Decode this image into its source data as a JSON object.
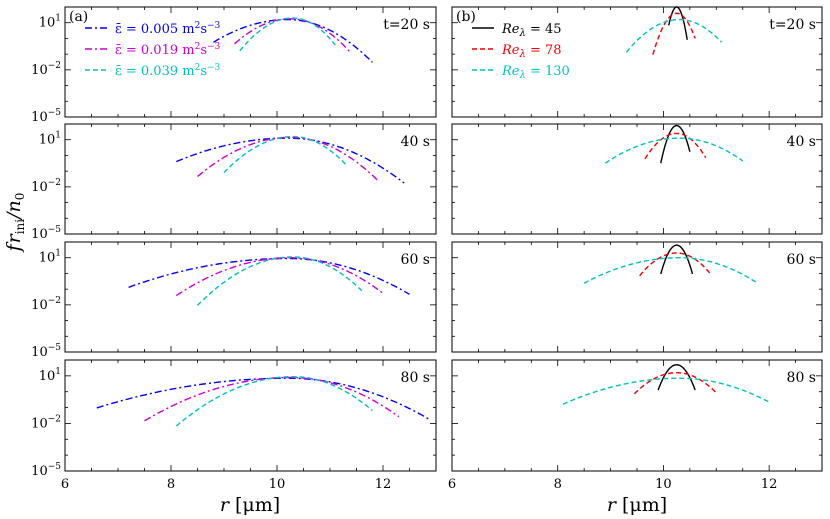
{
  "colors": {
    "blue": "#0000ee",
    "magenta": "#cc00cc",
    "cyan": "#00bfbf",
    "black": "#000000",
    "red": "#ee0000"
  },
  "chart_data": {
    "type": "line",
    "ylabel": "f r_ini / n_0",
    "xlabel": "r [μm]",
    "xlim": [
      6,
      13
    ],
    "xticks": [
      "6",
      "8",
      "10",
      "12"
    ],
    "yscale": "log",
    "ylim_exp": [
      -5,
      2
    ],
    "ytick_labels": [
      {
        "base": "10",
        "exp": "1"
      },
      {
        "base": "10",
        "exp": "-2"
      },
      {
        "base": "10",
        "exp": "-5"
      }
    ],
    "times": [
      "t=20 s",
      "40 s",
      "60 s",
      "80 s"
    ],
    "panel_labels": [
      "(a)",
      "(b)"
    ],
    "columns": [
      {
        "legend": [
          {
            "prefix": "ε̄ = 0.005 m",
            "unit": "2",
            "mid": "s",
            "unit2": "−3",
            "color": "#0000ee",
            "dash": "7,3,2,3"
          },
          {
            "prefix": "ε̄ = 0.019 m",
            "unit": "2",
            "mid": "s",
            "unit2": "−3",
            "color": "#cc00cc",
            "dash": "7,3,2,3"
          },
          {
            "prefix": "ε̄ = 0.039 m",
            "unit": "2",
            "mid": "s",
            "unit2": "−3",
            "color": "#00bfbf",
            "dash": "5,3"
          }
        ],
        "series_params": [
          {
            "name": "ε̄ = 0.005",
            "color": "#0000ee",
            "dash": "7,3,2,3",
            "rows": [
              {
                "peak": 10.2,
                "height": 1.2,
                "lw": 0.42,
                "rw": 0.35,
                "xmin": 8.8,
                "xmax": 11.8
              },
              {
                "peak": 10.2,
                "height": 1.1,
                "lw": 0.62,
                "rw": 0.47,
                "xmin": 8.1,
                "xmax": 12.4
              },
              {
                "peak": 10.2,
                "height": 0.95,
                "lw": 0.8,
                "rw": 0.55,
                "xmin": 7.2,
                "xmax": 12.5
              },
              {
                "peak": 10.2,
                "height": 0.85,
                "lw": 0.95,
                "rw": 0.6,
                "xmin": 6.6,
                "xmax": 12.9
              }
            ]
          },
          {
            "name": "ε̄ = 0.019",
            "color": "#cc00cc",
            "dash": "7,3,2,3",
            "rows": [
              {
                "peak": 10.25,
                "height": 1.25,
                "lw": 0.3,
                "rw": 0.28,
                "xmin": 9.2,
                "xmax": 11.4
              },
              {
                "peak": 10.25,
                "height": 1.15,
                "lw": 0.4,
                "rw": 0.36,
                "xmin": 8.5,
                "xmax": 11.9
              },
              {
                "peak": 10.25,
                "height": 1.0,
                "lw": 0.5,
                "rw": 0.42,
                "xmin": 8.1,
                "xmax": 12.0
              },
              {
                "peak": 10.25,
                "height": 0.9,
                "lw": 0.6,
                "rw": 0.47,
                "xmin": 7.5,
                "xmax": 12.3
              }
            ]
          },
          {
            "name": "ε̄ = 0.039",
            "color": "#00bfbf",
            "dash": "5,3",
            "rows": [
              {
                "peak": 10.3,
                "height": 1.3,
                "lw": 0.25,
                "rw": 0.22,
                "xmin": 9.3,
                "xmax": 11.1
              },
              {
                "peak": 10.3,
                "height": 1.2,
                "lw": 0.31,
                "rw": 0.27,
                "xmin": 9.0,
                "xmax": 11.3
              },
              {
                "peak": 10.3,
                "height": 1.05,
                "lw": 0.37,
                "rw": 0.32,
                "xmin": 8.5,
                "xmax": 11.6
              },
              {
                "peak": 10.3,
                "height": 0.95,
                "lw": 0.45,
                "rw": 0.37,
                "xmin": 8.1,
                "xmax": 11.8
              }
            ]
          }
        ]
      },
      {
        "legend": [
          {
            "prefix": "Re",
            "sub": "λ",
            "suffix": " = 45",
            "color": "#000000",
            "dash": ""
          },
          {
            "prefix": "Re",
            "sub": "λ",
            "suffix": " = 78",
            "color": "#ee0000",
            "dash": "5,3"
          },
          {
            "prefix": "Re",
            "sub": "λ",
            "suffix": " = 130",
            "color": "#00bfbf",
            "dash": "5,3"
          }
        ],
        "series_params": [
          {
            "name": "Re_λ = 45",
            "color": "#000000",
            "dash": "",
            "rows": [
              {
                "peak": 10.25,
                "height": 2.0,
                "lw": 0.05,
                "rw": 0.05,
                "xmin": 10.1,
                "xmax": 10.45
              },
              {
                "peak": 10.25,
                "height": 1.9,
                "lw": 0.07,
                "rw": 0.07,
                "xmin": 9.95,
                "xmax": 10.5
              },
              {
                "peak": 10.25,
                "height": 1.8,
                "lw": 0.08,
                "rw": 0.08,
                "xmin": 9.95,
                "xmax": 10.55
              },
              {
                "peak": 10.25,
                "height": 1.7,
                "lw": 0.1,
                "rw": 0.1,
                "xmin": 9.9,
                "xmax": 10.6
              }
            ]
          },
          {
            "name": "Re_λ = 78",
            "color": "#ee0000",
            "dash": "5,3",
            "rows": [
              {
                "peak": 10.25,
                "height": 1.6,
                "lw": 0.1,
                "rw": 0.1,
                "xmin": 9.8,
                "xmax": 10.6
              },
              {
                "peak": 10.25,
                "height": 1.4,
                "lw": 0.17,
                "rw": 0.16,
                "xmin": 9.65,
                "xmax": 10.8
              },
              {
                "peak": 10.25,
                "height": 1.3,
                "lw": 0.21,
                "rw": 0.2,
                "xmin": 9.55,
                "xmax": 10.9
              },
              {
                "peak": 10.25,
                "height": 1.2,
                "lw": 0.25,
                "rw": 0.24,
                "xmin": 9.45,
                "xmax": 11.0
              }
            ]
          },
          {
            "name": "Re_λ = 130",
            "color": "#00bfbf",
            "dash": "5,3",
            "rows": [
              {
                "peak": 10.3,
                "height": 1.2,
                "lw": 0.25,
                "rw": 0.24,
                "xmin": 9.3,
                "xmax": 11.1
              },
              {
                "peak": 10.3,
                "height": 1.1,
                "lw": 0.4,
                "rw": 0.36,
                "xmin": 8.9,
                "xmax": 11.5
              },
              {
                "peak": 10.3,
                "height": 1.0,
                "lw": 0.51,
                "rw": 0.42,
                "xmin": 8.5,
                "xmax": 11.75
              },
              {
                "peak": 10.3,
                "height": 0.85,
                "lw": 0.62,
                "rw": 0.5,
                "xmin": 8.1,
                "xmax": 12.0
              }
            ]
          }
        ]
      }
    ]
  }
}
